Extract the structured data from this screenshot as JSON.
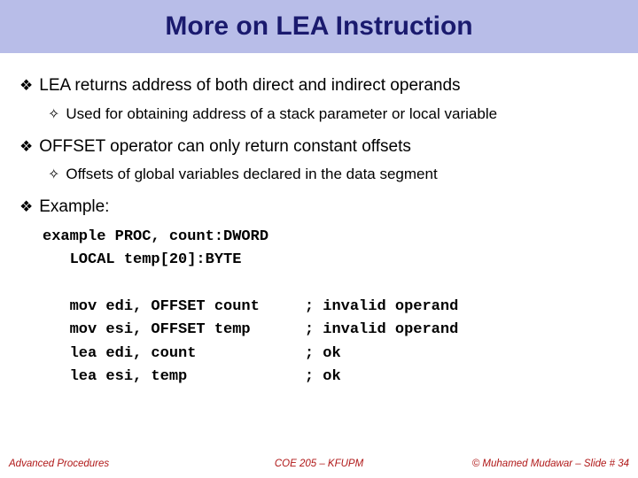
{
  "title": "More on LEA Instruction",
  "bullets": {
    "b1": "LEA returns address of both direct and indirect operands",
    "b1sub": "Used for obtaining address of a stack parameter or local variable",
    "b2": "OFFSET operator can only return constant offsets",
    "b2sub": "Offsets of global variables declared in the data segment",
    "b3": "Example:"
  },
  "code": "example PROC, count:DWORD\n   LOCAL temp[20]:BYTE\n\n   mov edi, OFFSET count     ; invalid operand\n   mov esi, OFFSET temp      ; invalid operand\n   lea edi, count            ; ok\n   lea esi, temp             ; ok",
  "footer": {
    "left": "Advanced Procedures",
    "center": "COE 205 – KFUPM",
    "right": "© Muhamed Mudawar – Slide # 34"
  },
  "colors": {
    "title_bg": "#b8bde8",
    "title_color": "#1a1a6e",
    "footer_color": "#b01818"
  }
}
